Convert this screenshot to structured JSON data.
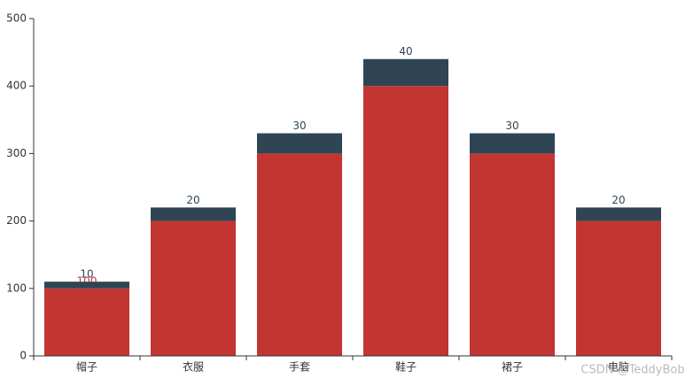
{
  "chart_data": {
    "type": "bar",
    "stacked": true,
    "categories": [
      "帽子",
      "衣服",
      "手套",
      "鞋子",
      "裙子",
      "电脑"
    ],
    "series": [
      {
        "color": "#c23531",
        "values": [
          100,
          200,
          300,
          400,
          300,
          200
        ]
      },
      {
        "color": "#2f4554",
        "values": [
          10,
          20,
          30,
          40,
          30,
          20
        ]
      }
    ],
    "ylim": [
      0,
      500
    ],
    "yticks": [
      0,
      100,
      200,
      300,
      400,
      500
    ],
    "watermark": "CSDN @TeddyBob"
  }
}
